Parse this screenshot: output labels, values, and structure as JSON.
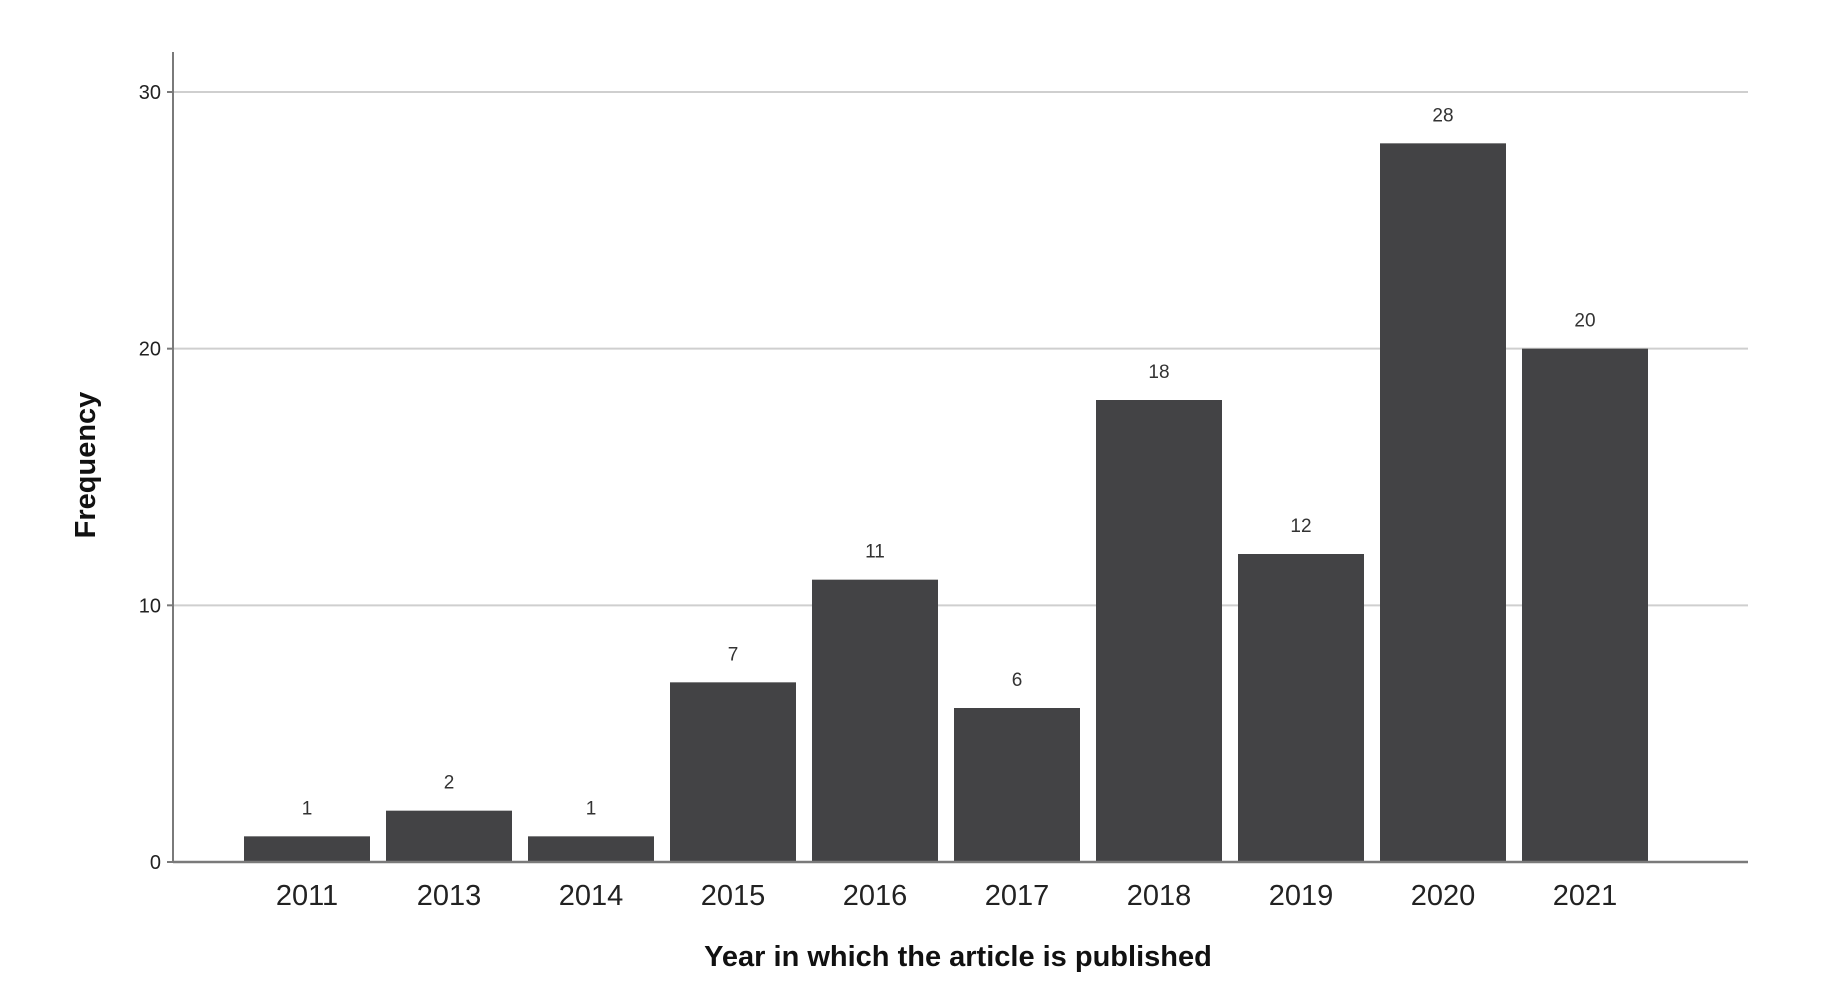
{
  "chart_data": {
    "type": "bar",
    "title": "",
    "xlabel": "Year in which the article is published",
    "ylabel": "Frequency",
    "categories": [
      "2011",
      "2013",
      "2014",
      "2015",
      "2016",
      "2017",
      "2018",
      "2019",
      "2020",
      "2021"
    ],
    "values": [
      1,
      2,
      1,
      7,
      11,
      6,
      18,
      12,
      28,
      20
    ],
    "data_labels": [
      "1",
      "2",
      "1",
      "7",
      "11",
      "6",
      "18",
      "12",
      "28",
      "20"
    ],
    "ylim": [
      0,
      30
    ],
    "yticks": [
      "0",
      "10",
      "20",
      "30"
    ],
    "grid": true,
    "legend": "none",
    "colors": {
      "bar": "#434345",
      "grid": "#cfcfcf",
      "axis": "#7a7a7a"
    }
  }
}
